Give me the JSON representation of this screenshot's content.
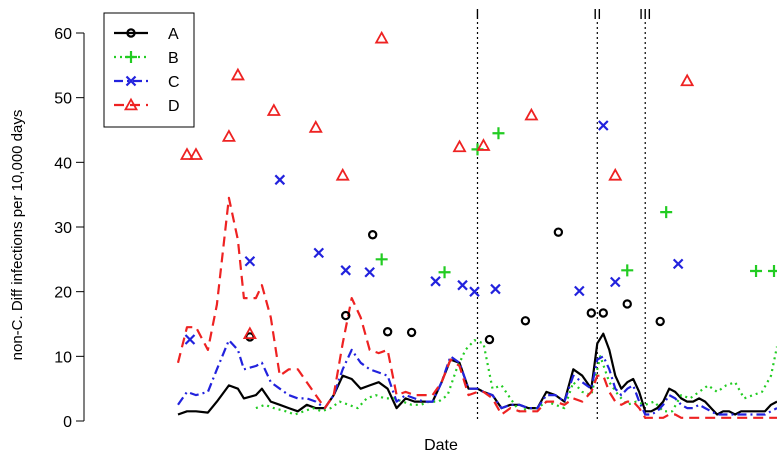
{
  "chart_data": {
    "type": "line",
    "title": "",
    "xlabel": "Date",
    "ylabel": "non-C. Diff infections per 10,000 days",
    "ylim": [
      0,
      60
    ],
    "yticks": [
      0,
      10,
      20,
      30,
      40,
      50,
      60
    ],
    "x_range": [
      0,
      100
    ],
    "grid": false,
    "legend_position": "top-left",
    "annotations": [
      {
        "label": "I",
        "x": 50
      },
      {
        "label": "II",
        "x": 70
      },
      {
        "label": "III",
        "x": 78
      }
    ],
    "series": [
      {
        "name": "A",
        "color": "#000000",
        "line_style": "solid",
        "marker": "circle",
        "line_x": [
          0,
          1.5,
          3,
          5,
          6.5,
          8.5,
          10,
          11,
          13,
          14,
          15.5,
          17,
          18.5,
          20,
          21.5,
          23,
          24.5,
          26,
          27.5,
          29,
          30.5,
          32,
          33.5,
          35,
          36.5,
          38,
          39.5,
          41,
          42.5,
          44,
          45.5,
          47,
          48.5,
          50,
          51,
          52.5,
          54,
          55.5,
          57,
          58.5,
          60,
          61.5,
          63,
          64.5,
          66,
          67.5,
          69,
          70,
          71,
          72,
          73,
          74,
          75,
          76,
          77,
          78,
          79,
          80,
          81,
          82,
          83,
          84,
          85,
          86,
          87,
          88,
          89,
          90,
          91,
          92,
          93,
          94,
          95,
          96,
          97,
          98,
          99,
          100
        ],
        "line_y": [
          1,
          1.5,
          1.5,
          1.3,
          3,
          5.5,
          5,
          3.5,
          4,
          5,
          3,
          2.5,
          2,
          1.5,
          2.5,
          2,
          2,
          4,
          7,
          6.5,
          5,
          5.5,
          6,
          5,
          2,
          3.5,
          3,
          3,
          3,
          6,
          9.5,
          9,
          5,
          5,
          4.5,
          4,
          2,
          2.5,
          2.5,
          2,
          2,
          4.5,
          4,
          3,
          8,
          7,
          5,
          12,
          13.5,
          11,
          7,
          5,
          6,
          6.5,
          4.5,
          1.5,
          1.5,
          2,
          3,
          5,
          4.5,
          3.5,
          3,
          3,
          3.5,
          3,
          2,
          1,
          1.5,
          1.5,
          1,
          1.5,
          1.5,
          1.5,
          1.5,
          1.5,
          2.5,
          3
        ],
        "point_x": [
          12,
          28,
          32.5,
          35,
          39,
          52,
          58,
          63.5,
          69,
          71,
          75,
          80.5
        ],
        "point_y": [
          13,
          16.3,
          28.8,
          13.8,
          13.7,
          12.6,
          15.5,
          29.2,
          16.7,
          16.7,
          18.1,
          15.4
        ]
      },
      {
        "name": "B",
        "color": "#22cc22",
        "line_style": "dotted",
        "marker": "plus",
        "line_x": [
          13,
          14.5,
          16,
          18,
          19.5,
          21,
          22.5,
          24,
          25.5,
          27,
          28.5,
          30,
          31.5,
          33,
          34.5,
          36,
          37.5,
          39,
          40.5,
          42,
          43.5,
          45,
          46.5,
          48,
          49.5,
          51,
          52.5,
          54,
          55.5,
          57,
          58.5,
          60,
          61.5,
          63,
          64.5,
          66,
          67.5,
          69,
          70.5,
          72,
          73.5,
          75,
          76.5,
          78,
          79.5,
          81,
          82.5,
          84,
          85.5,
          87,
          88.5,
          90,
          91.5,
          93,
          94.5,
          96,
          97.5,
          99,
          100
        ],
        "line_y": [
          2,
          2.5,
          2,
          1.5,
          1,
          1.5,
          2,
          1.5,
          2,
          3,
          2.5,
          2,
          3.5,
          4,
          3.5,
          3.5,
          3,
          2.5,
          2.5,
          3,
          3,
          4,
          8,
          11,
          12.5,
          12,
          5,
          5.5,
          3.5,
          1.5,
          2,
          2,
          3,
          2.5,
          2,
          6,
          4.5,
          4,
          10,
          6,
          4,
          2.5,
          3,
          2.5,
          3,
          1.5,
          1.5,
          4,
          3.5,
          4.5,
          5.5,
          4.5,
          5.5,
          6,
          3.5,
          4,
          4.5,
          7,
          11.5
        ],
        "point_x": [
          34,
          44.5,
          50,
          53.5,
          75,
          81.5,
          96.5,
          99.5
        ],
        "point_y": [
          25,
          23,
          42,
          44.5,
          23.3,
          32.3,
          23.2,
          23.2
        ]
      },
      {
        "name": "C",
        "color": "#2222dd",
        "line_style": "dashdot",
        "marker": "x",
        "line_x": [
          0,
          1.5,
          3,
          5,
          6.5,
          8.5,
          10,
          11,
          13,
          14,
          15.5,
          17,
          18.5,
          20,
          21.5,
          23,
          24.5,
          26,
          27.5,
          29,
          30.5,
          32,
          33.5,
          35,
          36.5,
          38,
          39.5,
          41,
          42.5,
          44,
          45.5,
          47,
          48.5,
          50,
          51,
          52.5,
          54,
          55.5,
          57,
          58.5,
          60,
          61.5,
          63,
          64.5,
          66,
          67.5,
          69,
          70,
          71,
          72,
          73,
          74,
          75,
          76,
          77,
          78,
          79,
          80,
          81,
          82,
          83,
          84,
          85,
          86,
          87,
          88,
          89,
          90,
          91,
          92,
          93,
          94,
          95,
          96,
          97,
          98,
          99,
          100
        ],
        "line_y": [
          2.5,
          4.5,
          4,
          4.5,
          8,
          12.5,
          11,
          8,
          8.5,
          9,
          6,
          5,
          4,
          3.5,
          3.5,
          3,
          2,
          4,
          8,
          11,
          9,
          8,
          7.5,
          7,
          3,
          4,
          3.5,
          3,
          3,
          6,
          10,
          9,
          5,
          5,
          4.5,
          4,
          2,
          2.5,
          2.5,
          2,
          2,
          4,
          4,
          3,
          7,
          6,
          5,
          9.5,
          10,
          8,
          5,
          4,
          5,
          5.5,
          3,
          1,
          1,
          1.5,
          2.5,
          4,
          3.5,
          2.5,
          2,
          2,
          2.5,
          2,
          1.5,
          1,
          1,
          1,
          1,
          1,
          1,
          1,
          1,
          1,
          1.5,
          2
        ],
        "point_x": [
          2,
          12,
          17,
          23.5,
          28,
          32,
          43,
          47.5,
          49.5,
          53,
          67,
          71,
          73,
          83.5
        ],
        "point_y": [
          12.6,
          24.7,
          37.3,
          26,
          23.3,
          23,
          21.6,
          21,
          20,
          20.4,
          20.1,
          45.7,
          21.5,
          24.3
        ]
      },
      {
        "name": "D",
        "color": "#ee2222",
        "line_style": "dashed",
        "marker": "triangle",
        "line_x": [
          0,
          1.5,
          3,
          5,
          6.5,
          8.5,
          10,
          11,
          13,
          14,
          15.5,
          17,
          18.5,
          20,
          21.5,
          23,
          24.5,
          26,
          27.5,
          29,
          30.5,
          32,
          33.5,
          35,
          36.5,
          38,
          39.5,
          41,
          42.5,
          44,
          45.5,
          47,
          48.5,
          50,
          51,
          52.5,
          54,
          55.5,
          57,
          58.5,
          60,
          61.5,
          63,
          64.5,
          66,
          67.5,
          69,
          70,
          71,
          72,
          73,
          74,
          75,
          76,
          77,
          78,
          79,
          80,
          81,
          82,
          83,
          84,
          85,
          86,
          87,
          88,
          89,
          90,
          91,
          92,
          93,
          94,
          95,
          96,
          97,
          98,
          99,
          100
        ],
        "line_y": [
          9,
          14.5,
          14.5,
          11,
          18,
          34.5,
          28,
          19,
          19,
          21,
          16,
          7,
          8,
          8,
          6,
          4,
          2,
          4,
          12,
          19,
          16,
          11,
          10.5,
          11,
          4,
          4.5,
          4,
          4,
          4,
          6,
          9.5,
          8.5,
          4,
          4.5,
          4.5,
          3.5,
          1,
          2,
          1.5,
          1.5,
          1.5,
          3,
          3,
          2.5,
          3.5,
          3,
          4.5,
          7,
          7,
          4.5,
          3,
          2.5,
          3,
          3,
          2,
          0.5,
          0.5,
          0.5,
          0.5,
          1,
          1,
          0.5,
          0.5,
          0.5,
          0.5,
          0.5,
          0.5,
          0.5,
          0.5,
          0.5,
          0.5,
          0.5,
          0.5,
          0.5,
          0.5,
          0.5,
          0.5,
          0.5
        ],
        "point_x": [
          1.5,
          3,
          8.5,
          10,
          12,
          16,
          23,
          27.5,
          34,
          47,
          51,
          59,
          73,
          85
        ],
        "point_y": [
          41.2,
          41.2,
          44,
          53.5,
          13.5,
          48,
          45.4,
          38,
          59.2,
          42.4,
          42.6,
          47.3,
          38,
          52.6
        ]
      }
    ]
  }
}
